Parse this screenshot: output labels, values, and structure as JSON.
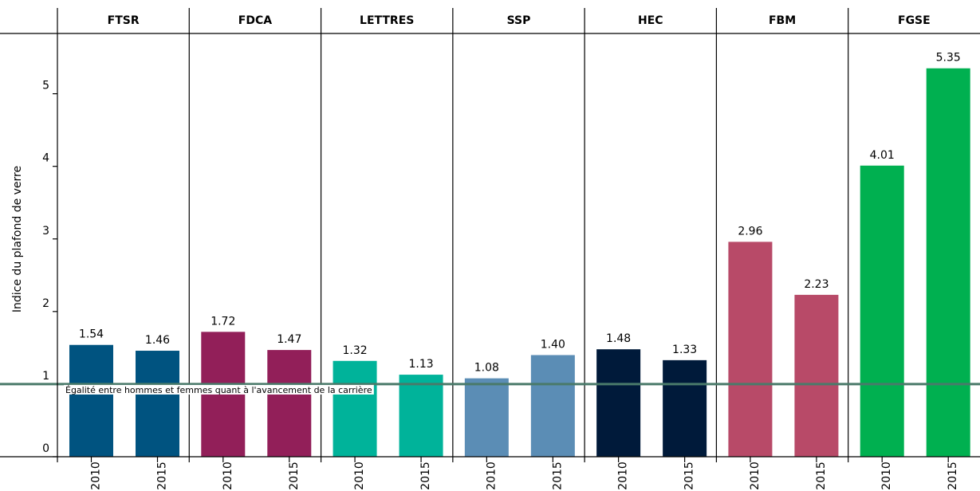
{
  "chart_data": {
    "type": "bar",
    "ylabel": "Indice du plafond de verre",
    "categories": [
      "2010",
      "2015"
    ],
    "facets": [
      {
        "name": "FTSR",
        "color": "#005380",
        "values": [
          1.54,
          1.46
        ],
        "value_labels": [
          "1.54",
          "1.46"
        ]
      },
      {
        "name": "FDCA",
        "color": "#921f59",
        "values": [
          1.72,
          1.47
        ],
        "value_labels": [
          "1.72",
          "1.47"
        ]
      },
      {
        "name": "LETTRES",
        "color": "#00b39a",
        "values": [
          1.32,
          1.13
        ],
        "value_labels": [
          "1.32",
          "1.13"
        ]
      },
      {
        "name": "SSP",
        "color": "#5b8db5",
        "values": [
          1.08,
          1.4
        ],
        "value_labels": [
          "1.08",
          "1.40"
        ]
      },
      {
        "name": "HEC",
        "color": "#001a3a",
        "values": [
          1.48,
          1.33
        ],
        "value_labels": [
          "1.48",
          "1.33"
        ]
      },
      {
        "name": "FBM",
        "color": "#b84a68",
        "values": [
          2.96,
          2.23
        ],
        "value_labels": [
          "2.96",
          "2.23"
        ]
      },
      {
        "name": "FGSE",
        "color": "#00b050",
        "values": [
          4.01,
          5.35
        ],
        "value_labels": [
          "4.01",
          "5.35"
        ]
      }
    ],
    "reference_line": {
      "value": 1,
      "label": "Égalité entre hommes et femmes quant à l'avancement de la carrière",
      "color": "#4a7a6a"
    },
    "ylim": [
      0,
      5.83
    ],
    "yticks": [
      0,
      1,
      2,
      3,
      4,
      5
    ]
  }
}
